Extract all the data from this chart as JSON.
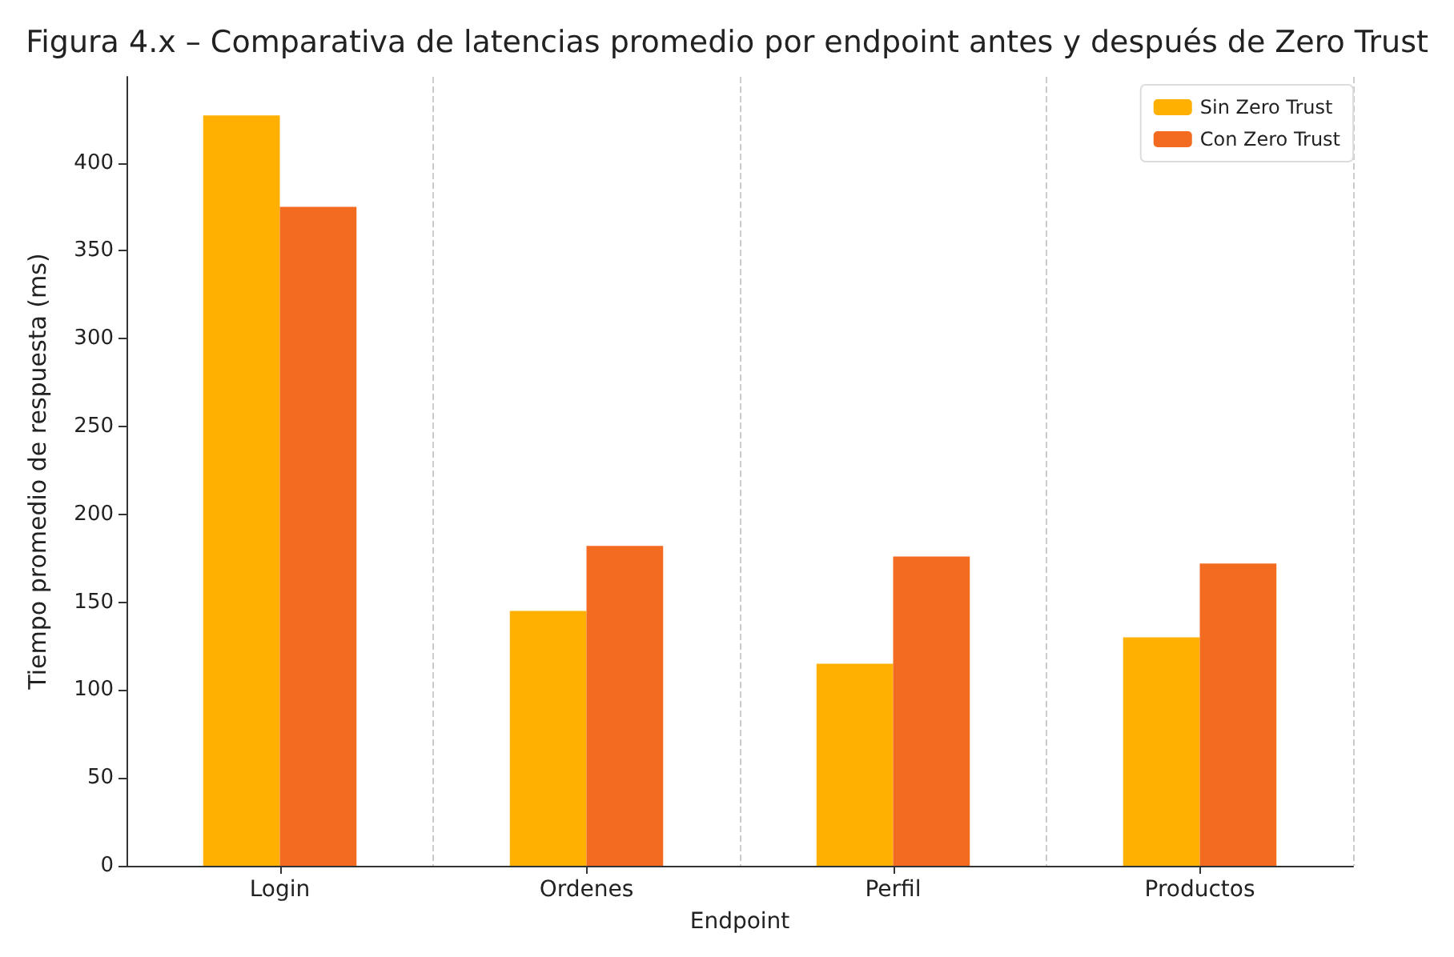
{
  "chart_data": {
    "type": "bar",
    "title": "Figura 4.x – Comparativa de latencias promedio por endpoint antes y después de Zero Trust",
    "xlabel": "Endpoint",
    "ylabel": "Tiempo promedio de respuesta (ms)",
    "categories": [
      "Login",
      "Ordenes",
      "Perfil",
      "Productos"
    ],
    "series": [
      {
        "name": "Sin Zero Trust",
        "color": "#ffb000",
        "values": [
          427,
          145,
          115,
          130
        ]
      },
      {
        "name": "Con Zero Trust",
        "color": "#f26b21",
        "values": [
          375,
          182,
          176,
          172
        ]
      }
    ],
    "ylim": [
      0,
      449
    ],
    "yticks": [
      0,
      50,
      100,
      150,
      200,
      250,
      300,
      350,
      400
    ],
    "grid": "x",
    "legend": "top right"
  }
}
